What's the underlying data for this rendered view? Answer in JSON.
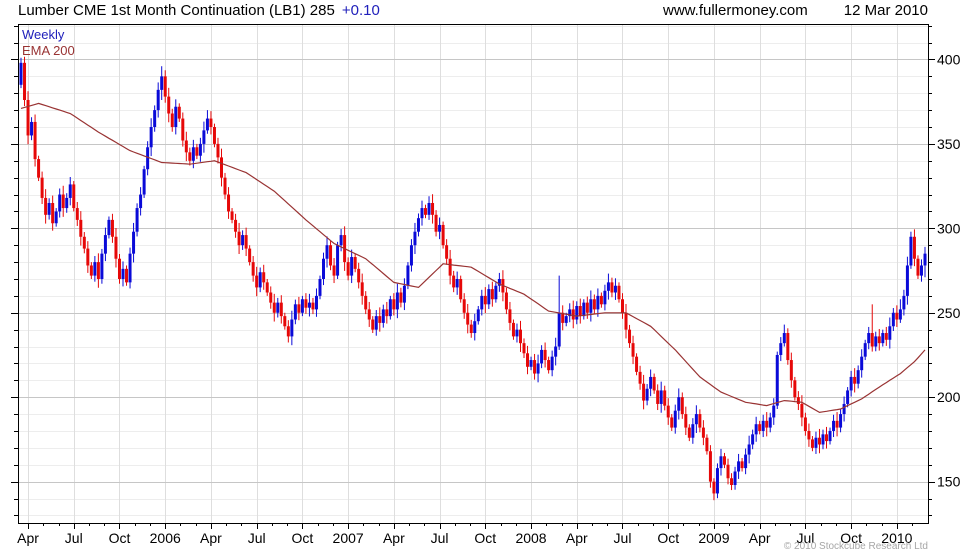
{
  "header": {
    "title": "Lumber CME 1st Month Continuation (LB1) 285",
    "change": "+0.10",
    "website": "www.fullermoney.com",
    "date": "12 Mar 2010"
  },
  "legend": {
    "timeframe": "Weekly",
    "indicator": "EMA 200"
  },
  "footer": {
    "copyright": "© 2010 Stockcube Research Ltd"
  },
  "chart_data": {
    "type": "candlestick",
    "title": "Lumber CME 1st Month Continuation (LB1)",
    "period": "Weekly",
    "last_price": 285,
    "change": "+0.10",
    "ylim": [
      125.5,
      421
    ],
    "y_ticks_labeled": [
      150,
      200,
      250,
      300,
      350,
      400
    ],
    "y_minor_step": 10,
    "y_minor_range": [
      130,
      420
    ],
    "x_ticks": [
      {
        "label": "Apr",
        "wk": 2
      },
      {
        "label": "Jul",
        "wk": 15
      },
      {
        "label": "Oct",
        "wk": 28
      },
      {
        "label": "2006",
        "wk": 41
      },
      {
        "label": "Apr",
        "wk": 54
      },
      {
        "label": "Jul",
        "wk": 67
      },
      {
        "label": "Oct",
        "wk": 80
      },
      {
        "label": "2007",
        "wk": 93
      },
      {
        "label": "Apr",
        "wk": 106
      },
      {
        "label": "Jul",
        "wk": 119
      },
      {
        "label": "Oct",
        "wk": 132
      },
      {
        "label": "2008",
        "wk": 145
      },
      {
        "label": "Apr",
        "wk": 158
      },
      {
        "label": "Jul",
        "wk": 171
      },
      {
        "label": "Oct",
        "wk": 184
      },
      {
        "label": "2009",
        "wk": 197
      },
      {
        "label": "Apr",
        "wk": 210
      },
      {
        "label": "Jul",
        "wk": 223
      },
      {
        "label": "Oct",
        "wk": 236
      },
      {
        "label": "2010",
        "wk": 249
      }
    ],
    "weeks_total": 258,
    "first_open": 385,
    "closes": [
      398,
      376,
      355,
      363,
      341,
      330,
      318,
      308,
      315,
      303,
      310,
      320,
      312,
      318,
      326,
      312,
      305,
      295,
      288,
      278,
      272,
      280,
      270,
      285,
      296,
      305,
      295,
      282,
      270,
      276,
      268,
      285,
      298,
      312,
      320,
      335,
      348,
      360,
      370,
      382,
      390,
      378,
      368,
      360,
      372,
      365,
      352,
      345,
      340,
      348,
      343,
      350,
      358,
      365,
      360,
      350,
      342,
      330,
      320,
      310,
      305,
      298,
      290,
      296,
      288,
      280,
      272,
      265,
      274,
      268,
      262,
      256,
      250,
      256,
      248,
      242,
      236,
      246,
      255,
      250,
      258,
      253,
      256,
      252,
      260,
      270,
      282,
      290,
      278,
      272,
      290,
      296,
      280,
      272,
      283,
      276,
      268,
      260,
      252,
      246,
      240,
      248,
      244,
      252,
      248,
      258,
      252,
      262,
      256,
      266,
      278,
      290,
      298,
      306,
      312,
      308,
      315,
      308,
      298,
      302,
      290,
      282,
      272,
      265,
      270,
      258,
      250,
      243,
      238,
      245,
      252,
      260,
      255,
      264,
      258,
      266,
      270,
      262,
      252,
      244,
      236,
      240,
      232,
      226,
      218,
      222,
      214,
      220,
      228,
      222,
      216,
      224,
      230,
      250,
      244,
      248,
      252,
      246,
      254,
      248,
      256,
      250,
      258,
      252,
      260,
      255,
      263,
      268,
      262,
      266,
      258,
      250,
      240,
      232,
      224,
      215,
      208,
      198,
      205,
      212,
      204,
      196,
      204,
      195,
      188,
      182,
      192,
      200,
      190,
      182,
      176,
      184,
      190,
      182,
      176,
      168,
      150,
      143,
      158,
      165,
      160,
      152,
      148,
      156,
      162,
      158,
      166,
      172,
      178,
      184,
      180,
      186,
      182,
      188,
      195,
      225,
      232,
      238,
      222,
      210,
      200,
      196,
      188,
      180,
      175,
      170,
      176,
      172,
      178,
      174,
      180,
      186,
      182,
      190,
      196,
      204,
      212,
      208,
      216,
      224,
      232,
      238,
      230,
      236,
      232,
      238,
      234,
      242,
      250,
      246,
      252,
      260,
      278,
      295,
      282,
      272,
      278,
      285
    ],
    "wick_overrides": {
      "0": [
        401,
        383
      ],
      "40": [
        396,
        376
      ],
      "53": [
        370,
        356
      ],
      "116": [
        319,
        305
      ],
      "153": [
        272,
        228
      ],
      "197": [
        152,
        139
      ],
      "202": [
        155,
        145
      ],
      "217": [
        243,
        230
      ],
      "242": [
        255,
        227
      ],
      "250": [
        258,
        244
      ],
      "253": [
        298,
        276
      ],
      "257": [
        289,
        271
      ]
    },
    "ema": {
      "name": "EMA 200",
      "color": "#993333",
      "anchors": [
        [
          0,
          371
        ],
        [
          5,
          374
        ],
        [
          14,
          368
        ],
        [
          22,
          357
        ],
        [
          31,
          346
        ],
        [
          40,
          339
        ],
        [
          48,
          338
        ],
        [
          55,
          340
        ],
        [
          64,
          333
        ],
        [
          72,
          322
        ],
        [
          81,
          305
        ],
        [
          89,
          291
        ],
        [
          98,
          282
        ],
        [
          106,
          268
        ],
        [
          113,
          265
        ],
        [
          120,
          279
        ],
        [
          128,
          277
        ],
        [
          136,
          267
        ],
        [
          143,
          261
        ],
        [
          150,
          251
        ],
        [
          158,
          248
        ],
        [
          166,
          250
        ],
        [
          172,
          250
        ],
        [
          179,
          242
        ],
        [
          186,
          228
        ],
        [
          193,
          212
        ],
        [
          199,
          203
        ],
        [
          206,
          197
        ],
        [
          212,
          195
        ],
        [
          217,
          198
        ],
        [
          222,
          197
        ],
        [
          227,
          191
        ],
        [
          233,
          193
        ],
        [
          239,
          199
        ],
        [
          244,
          206
        ],
        [
          250,
          214
        ],
        [
          254,
          221
        ],
        [
          257,
          228
        ]
      ]
    },
    "colors": {
      "up": "#0a0ad8",
      "down": "#e60808",
      "grid_minor": "#ededed",
      "grid_major": "#c6c6c6",
      "grid_vert": "#dedede",
      "axis": "#000000",
      "label": "#000000"
    }
  }
}
